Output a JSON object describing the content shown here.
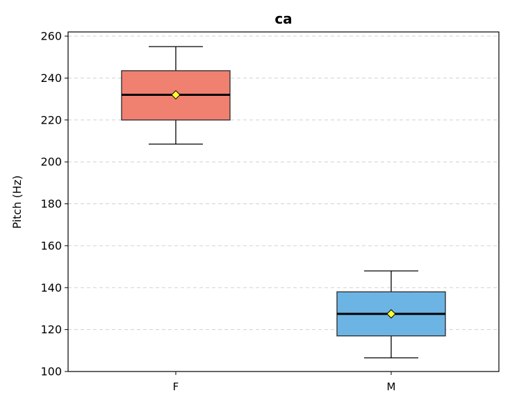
{
  "chart_data": {
    "type": "box",
    "title": "ca",
    "xlabel": "",
    "ylabel": "Pitch (Hz)",
    "ylim": [
      100,
      262
    ],
    "yticks": [
      100,
      120,
      140,
      160,
      180,
      200,
      220,
      240,
      260
    ],
    "grid": "y-dashed",
    "categories": [
      "F",
      "M"
    ],
    "series": [
      {
        "category": "F",
        "color": "#f08070",
        "whisker_low": 208.5,
        "q1": 220,
        "median": 232,
        "mean": 232,
        "q3": 243.5,
        "whisker_high": 255
      },
      {
        "category": "M",
        "color": "#6cb4e4",
        "whisker_low": 106.5,
        "q1": 117,
        "median": 127.5,
        "mean": 127.5,
        "q3": 138,
        "whisker_high": 148
      }
    ],
    "mean_marker_color": "#ffff33"
  }
}
